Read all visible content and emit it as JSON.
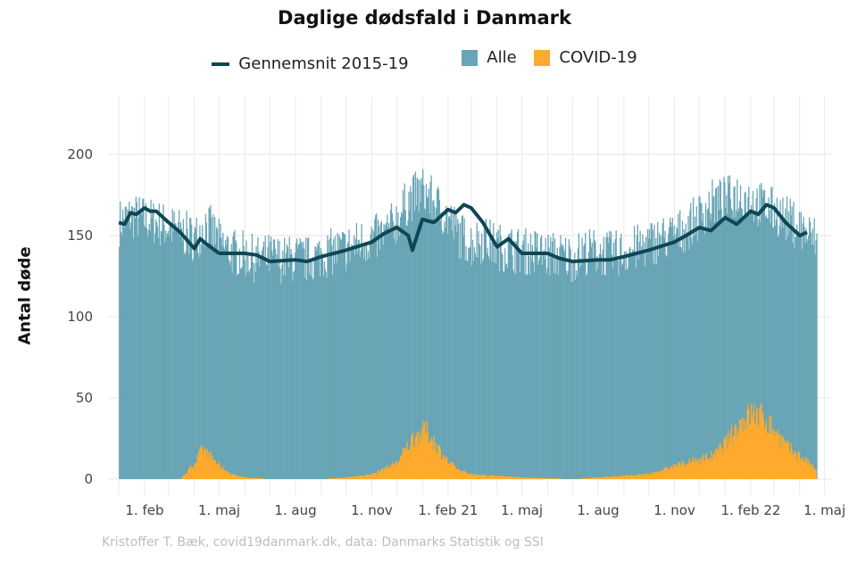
{
  "title": "Daglige dødsfald i Danmark",
  "legend": {
    "avg_label": "Gennemsnit 2015-19",
    "all_label": "Alle",
    "covid_label": "COVID-19"
  },
  "ylabel": "Antal døde",
  "caption": "Kristoffer T. Bæk, covid19danmark.dk, data: Danmarks Statistik og SSI",
  "colors": {
    "alle": "#68a5b6",
    "covid": "#ffaa2c",
    "avg": "#0e4753",
    "grid": "#ebebeb"
  },
  "chart_data": {
    "type": "area",
    "title": "Daglige dødsfald i Danmark",
    "ylabel": "Antal døde",
    "ylim": [
      0,
      230
    ],
    "yticks": [
      0,
      50,
      100,
      150,
      200
    ],
    "xlim": [
      "2019-12-20",
      "2022-05-10"
    ],
    "grid": true,
    "legend_position": "top",
    "x_ticks": [
      {
        "date": "2020-02-01",
        "label": "1. feb"
      },
      {
        "date": "2020-05-01",
        "label": "1. maj"
      },
      {
        "date": "2020-08-01",
        "label": "1. aug"
      },
      {
        "date": "2020-11-01",
        "label": "1. nov"
      },
      {
        "date": "2021-02-01",
        "label": "1. feb 21"
      },
      {
        "date": "2021-05-01",
        "label": "1. maj"
      },
      {
        "date": "2021-08-01",
        "label": "1. aug"
      },
      {
        "date": "2021-11-01",
        "label": "1. nov"
      },
      {
        "date": "2022-02-01",
        "label": "1. feb 22"
      },
      {
        "date": "2022-05-01",
        "label": "1. maj"
      }
    ],
    "series": [
      {
        "name": "Alle",
        "kind": "bars",
        "points": [
          [
            "2020-01-01",
            158
          ],
          [
            "2020-01-15",
            162
          ],
          [
            "2020-02-01",
            160
          ],
          [
            "2020-02-15",
            158
          ],
          [
            "2020-03-01",
            155
          ],
          [
            "2020-03-15",
            152
          ],
          [
            "2020-04-01",
            148
          ],
          [
            "2020-04-15",
            158
          ],
          [
            "2020-05-01",
            145
          ],
          [
            "2020-05-15",
            140
          ],
          [
            "2020-06-01",
            138
          ],
          [
            "2020-06-15",
            135
          ],
          [
            "2020-07-01",
            137
          ],
          [
            "2020-07-15",
            135
          ],
          [
            "2020-08-01",
            136
          ],
          [
            "2020-08-15",
            135
          ],
          [
            "2020-09-01",
            138
          ],
          [
            "2020-09-15",
            140
          ],
          [
            "2020-10-01",
            142
          ],
          [
            "2020-10-15",
            145
          ],
          [
            "2020-11-01",
            148
          ],
          [
            "2020-11-15",
            150
          ],
          [
            "2020-12-01",
            160
          ],
          [
            "2020-12-15",
            172
          ],
          [
            "2021-01-01",
            178
          ],
          [
            "2021-01-15",
            170
          ],
          [
            "2021-02-01",
            160
          ],
          [
            "2021-02-15",
            150
          ],
          [
            "2021-03-01",
            145
          ],
          [
            "2021-03-15",
            148
          ],
          [
            "2021-04-01",
            143
          ],
          [
            "2021-04-15",
            142
          ],
          [
            "2021-05-01",
            140
          ],
          [
            "2021-05-15",
            140
          ],
          [
            "2021-06-01",
            138
          ],
          [
            "2021-06-15",
            138
          ],
          [
            "2021-07-01",
            136
          ],
          [
            "2021-07-15",
            140
          ],
          [
            "2021-08-01",
            140
          ],
          [
            "2021-08-15",
            138
          ],
          [
            "2021-09-01",
            140
          ],
          [
            "2021-09-15",
            142
          ],
          [
            "2021-10-01",
            145
          ],
          [
            "2021-10-15",
            148
          ],
          [
            "2021-11-01",
            150
          ],
          [
            "2021-11-15",
            155
          ],
          [
            "2021-12-01",
            162
          ],
          [
            "2021-12-15",
            170
          ],
          [
            "2022-01-01",
            172
          ],
          [
            "2022-01-15",
            175
          ],
          [
            "2022-02-01",
            172
          ],
          [
            "2022-02-15",
            168
          ],
          [
            "2022-03-01",
            165
          ],
          [
            "2022-03-15",
            160
          ],
          [
            "2022-04-01",
            155
          ],
          [
            "2022-04-15",
            148
          ]
        ]
      },
      {
        "name": "COVID-19",
        "kind": "bars",
        "points": [
          [
            "2020-03-15",
            0
          ],
          [
            "2020-04-01",
            10
          ],
          [
            "2020-04-10",
            18
          ],
          [
            "2020-04-20",
            14
          ],
          [
            "2020-05-01",
            8
          ],
          [
            "2020-05-15",
            3
          ],
          [
            "2020-06-01",
            1
          ],
          [
            "2020-07-01",
            0
          ],
          [
            "2020-09-01",
            0
          ],
          [
            "2020-10-01",
            1
          ],
          [
            "2020-11-01",
            3
          ],
          [
            "2020-12-01",
            10
          ],
          [
            "2020-12-20",
            25
          ],
          [
            "2021-01-05",
            30
          ],
          [
            "2021-01-15",
            22
          ],
          [
            "2021-02-01",
            10
          ],
          [
            "2021-02-15",
            5
          ],
          [
            "2021-03-01",
            3
          ],
          [
            "2021-04-01",
            2
          ],
          [
            "2021-05-01",
            1
          ],
          [
            "2021-07-01",
            0
          ],
          [
            "2021-09-01",
            2
          ],
          [
            "2021-10-01",
            3
          ],
          [
            "2021-11-01",
            8
          ],
          [
            "2021-12-01",
            12
          ],
          [
            "2021-12-20",
            15
          ],
          [
            "2022-01-05",
            25
          ],
          [
            "2022-01-20",
            35
          ],
          [
            "2022-02-01",
            40
          ],
          [
            "2022-02-15",
            38
          ],
          [
            "2022-03-01",
            30
          ],
          [
            "2022-03-15",
            20
          ],
          [
            "2022-04-01",
            14
          ],
          [
            "2022-04-15",
            8
          ],
          [
            "2022-04-20",
            5
          ]
        ]
      },
      {
        "name": "Gennemsnit 2015-19",
        "kind": "line",
        "points": [
          [
            "2020-01-01",
            158
          ],
          [
            "2020-01-08",
            157
          ],
          [
            "2020-01-15",
            164
          ],
          [
            "2020-01-22",
            163
          ],
          [
            "2020-02-01",
            167
          ],
          [
            "2020-02-08",
            165
          ],
          [
            "2020-02-15",
            165
          ],
          [
            "2020-03-01",
            158
          ],
          [
            "2020-03-15",
            152
          ],
          [
            "2020-04-01",
            142
          ],
          [
            "2020-04-08",
            148
          ],
          [
            "2020-04-15",
            145
          ],
          [
            "2020-05-01",
            139
          ],
          [
            "2020-06-01",
            139
          ],
          [
            "2020-06-15",
            138
          ],
          [
            "2020-07-01",
            134
          ],
          [
            "2020-08-01",
            135
          ],
          [
            "2020-08-15",
            134
          ],
          [
            "2020-09-01",
            137
          ],
          [
            "2020-10-01",
            141
          ],
          [
            "2020-11-01",
            146
          ],
          [
            "2020-11-15",
            151
          ],
          [
            "2020-12-01",
            155
          ],
          [
            "2020-12-15",
            150
          ],
          [
            "2020-12-20",
            141
          ],
          [
            "2021-01-01",
            160
          ],
          [
            "2021-01-15",
            158
          ],
          [
            "2021-02-01",
            166
          ],
          [
            "2021-02-10",
            164
          ],
          [
            "2021-02-20",
            169
          ],
          [
            "2021-03-01",
            167
          ],
          [
            "2021-03-15",
            158
          ],
          [
            "2021-04-01",
            143
          ],
          [
            "2021-04-15",
            148
          ],
          [
            "2021-05-01",
            139
          ],
          [
            "2021-06-01",
            139
          ],
          [
            "2021-06-15",
            136
          ],
          [
            "2021-07-01",
            134
          ],
          [
            "2021-08-01",
            135
          ],
          [
            "2021-08-15",
            135
          ],
          [
            "2021-09-01",
            137
          ],
          [
            "2021-10-01",
            141
          ],
          [
            "2021-11-01",
            146
          ],
          [
            "2021-11-15",
            150
          ],
          [
            "2021-12-01",
            155
          ],
          [
            "2021-12-15",
            153
          ],
          [
            "2022-01-01",
            161
          ],
          [
            "2022-01-15",
            157
          ],
          [
            "2022-02-01",
            165
          ],
          [
            "2022-02-10",
            163
          ],
          [
            "2022-02-20",
            169
          ],
          [
            "2022-03-01",
            167
          ],
          [
            "2022-03-15",
            158
          ],
          [
            "2022-04-01",
            150
          ],
          [
            "2022-04-10",
            152
          ]
        ]
      }
    ]
  }
}
